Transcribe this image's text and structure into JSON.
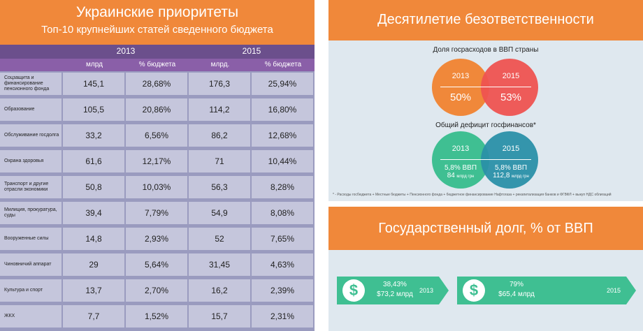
{
  "left": {
    "title": "Украинские приоритеты",
    "subtitle": "Топ-10 крупнейших статей сведенного бюджета",
    "years": [
      "2013",
      "2015"
    ],
    "subheaders": [
      "млрд",
      "% бюджета",
      "млрд.",
      "% бюджета"
    ],
    "rows": [
      {
        "label": "Соцзащита и финансирование пенсионного фонда",
        "v2013": "145,1",
        "p2013": "28,68%",
        "v2015": "176,3",
        "p2015": "25,94%"
      },
      {
        "label": "Образование",
        "v2013": "105,5",
        "p2013": "20,86%",
        "v2015": "114,2",
        "p2015": "16,80%"
      },
      {
        "label": "Обслуживание госдолга",
        "v2013": "33,2",
        "p2013": "6,56%",
        "v2015": "86,2",
        "p2015": "12,68%"
      },
      {
        "label": "Охрана здоровья",
        "v2013": "61,6",
        "p2013": "12,17%",
        "v2015": "71",
        "p2015": "10,44%"
      },
      {
        "label": "Транспорт и другие отрасли экономики",
        "v2013": "50,8",
        "p2013": "10,03%",
        "v2015": "56,3",
        "p2015": "8,28%"
      },
      {
        "label": "Милиция, прокуратура, суды",
        "v2013": "39,4",
        "p2013": "7,79%",
        "v2015": "54,9",
        "p2015": "8,08%"
      },
      {
        "label": "Вооруженные силы",
        "v2013": "14,8",
        "p2013": "2,93%",
        "v2015": "52",
        "p2015": "7,65%"
      },
      {
        "label": "Чиновничий аппарат",
        "v2013": "29",
        "p2013": "5,64%",
        "v2015": "31,45",
        "p2015": "4,63%"
      },
      {
        "label": "Культура и спорт",
        "v2013": "13,7",
        "p2013": "2,70%",
        "v2015": "16,2",
        "p2015": "2,39%"
      },
      {
        "label": "ЖКХ",
        "v2013": "7,7",
        "p2013": "1,52%",
        "v2015": "15,7",
        "p2015": "2,31%"
      }
    ]
  },
  "right_top": {
    "title": "Десятилетие безответственности",
    "share_label": "Доля госрасходов в ВВП страны",
    "share": {
      "y1": "2013",
      "v1": "50%",
      "y2": "2015",
      "v2": "53%"
    },
    "deficit_label": "Общий дефицит госфинансов*",
    "deficit": {
      "y1": "2013",
      "gdp1": "5,8% ВВП",
      "amt1": "84",
      "unit1": "млрд грн",
      "y2": "2015",
      "gdp2": "5,8% ВВП",
      "amt2": "112,8",
      "unit2": "млрд грн"
    },
    "footnote": "* - Расходы госбюджета + Местные бюджеты + Пенсионного фонда + бюджетное финансирование Нафтогаза + рекапитализация банков и ФГВФЛ + выкуп НДС облигаций"
  },
  "right_bottom": {
    "title": "Государственный долг, % от ВВП",
    "items": [
      {
        "icon": "$",
        "pct": "38,43%",
        "amount": "$73,2 млрд",
        "year": "2013"
      },
      {
        "icon": "$",
        "pct": "79%",
        "amount": "$65,4 млрд",
        "year": "2015"
      }
    ]
  },
  "colors": {
    "orange": "#f0883a",
    "purple": "#6b4f8c",
    "green": "#3fbf92",
    "red": "#ee5350",
    "teal": "#2a90a8"
  }
}
